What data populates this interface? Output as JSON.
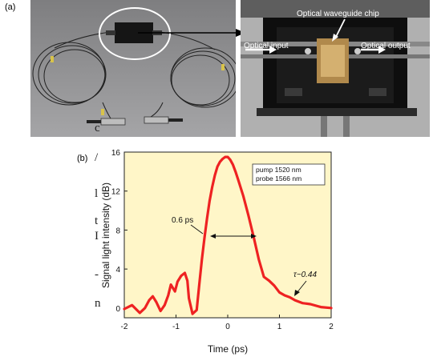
{
  "panel_a": {
    "label": "(a)",
    "annotations": {
      "chip": "Optical waveguide chip",
      "input": "Optical input",
      "output": "Optical output"
    }
  },
  "panel_b": {
    "label": "(b)"
  },
  "margin_text": [
    "c",
    "/",
    "l",
    "t",
    "I",
    "-",
    "n"
  ],
  "chart_data": {
    "type": "line",
    "title": "",
    "xlabel": "Time (ps)",
    "ylabel": "Signal light intensity (dB)",
    "xlim": [
      -2,
      2
    ],
    "ylim": [
      -1,
      16
    ],
    "xticks": [
      -2,
      -1,
      0,
      1,
      2
    ],
    "yticks": [
      0,
      4,
      8,
      12,
      16
    ],
    "legend_box": [
      "pump 1520 nm",
      "probe 1566 nm"
    ],
    "annotations": {
      "fwhm": "0.6 ps",
      "tau": "τ~0.44"
    },
    "series": [
      {
        "color": "#ee2222",
        "x": [
          -2.0,
          -1.85,
          -1.7,
          -1.6,
          -1.52,
          -1.45,
          -1.38,
          -1.3,
          -1.22,
          -1.15,
          -1.1,
          -1.02,
          -0.97,
          -0.9,
          -0.83,
          -0.78,
          -0.75,
          -0.68,
          -0.6,
          -0.55,
          -0.5,
          -0.45,
          -0.4,
          -0.35,
          -0.3,
          -0.25,
          -0.2,
          -0.15,
          -0.1,
          -0.05,
          0.0,
          0.05,
          0.1,
          0.15,
          0.2,
          0.3,
          0.4,
          0.5,
          0.6,
          0.7,
          0.8,
          0.9,
          1.0,
          1.1,
          1.2,
          1.3,
          1.45,
          1.6,
          1.8,
          2.0
        ],
        "y": [
          -0.1,
          0.3,
          -0.5,
          0.0,
          0.8,
          1.2,
          0.6,
          -0.3,
          0.3,
          1.3,
          2.4,
          1.7,
          2.7,
          3.3,
          3.6,
          2.8,
          1.0,
          -0.6,
          -0.2,
          2.4,
          5.0,
          7.2,
          9.2,
          11.0,
          12.4,
          13.6,
          14.5,
          15.0,
          15.3,
          15.5,
          15.5,
          15.2,
          14.7,
          14.0,
          13.2,
          11.5,
          9.5,
          7.3,
          5.0,
          3.2,
          2.8,
          2.3,
          1.6,
          1.3,
          1.1,
          0.8,
          0.5,
          0.4,
          0.1,
          0.0
        ]
      }
    ]
  }
}
